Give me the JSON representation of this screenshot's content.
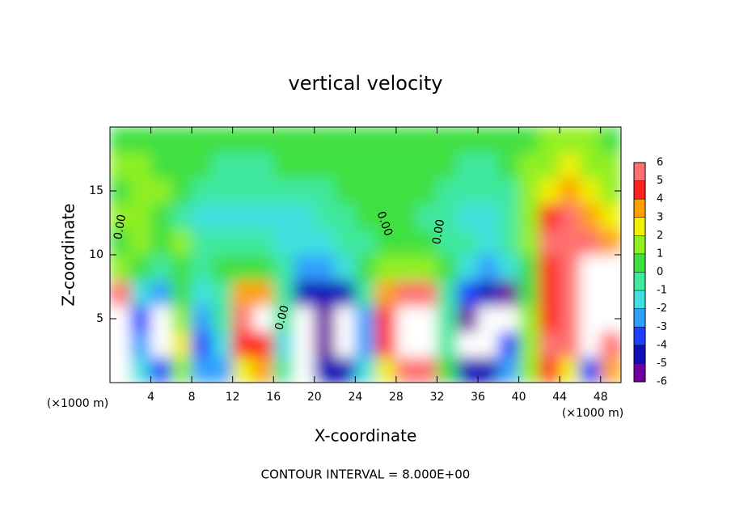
{
  "chart_data": {
    "type": "contour",
    "title": "vertical velocity",
    "x_label": "X-coordinate",
    "y_label": "Z-coordinate",
    "x_unit_left": "(×1000 m)",
    "x_unit_right": "(×1000 m)",
    "footer": "CONTOUR INTERVAL = 8.000E+00",
    "contour_labels": [
      "0.00",
      "0.00",
      "0.00",
      "0.00"
    ],
    "x": [
      1,
      3,
      5,
      7,
      9,
      11,
      13,
      15,
      17,
      19,
      21,
      23,
      25,
      27,
      29,
      31,
      33,
      35,
      37,
      39,
      41,
      43,
      45,
      47,
      49
    ],
    "y": [
      1,
      3,
      5,
      7,
      9,
      11,
      13,
      15,
      17,
      19
    ],
    "z": [
      [
        8,
        -2,
        -4,
        1,
        -3,
        -3,
        2,
        3,
        -1,
        -7,
        -5,
        -5,
        -2,
        2,
        6,
        6,
        0,
        -5,
        -5,
        -3,
        1,
        4,
        2,
        -4,
        3
      ],
      [
        9,
        -3,
        -7,
        2,
        -4,
        -2,
        4,
        4,
        -2,
        -8,
        -6,
        -8,
        -3,
        4,
        9,
        9,
        -1,
        -7,
        -8,
        -4,
        1,
        5,
        5,
        -8,
        6
      ],
      [
        8,
        -4,
        -8,
        1,
        -3,
        -1,
        5,
        7,
        -1,
        -7,
        -6,
        -8,
        -3,
        4,
        9,
        9,
        -1,
        -6,
        -7,
        -8,
        1,
        4,
        6,
        7,
        8
      ],
      [
        5,
        -2,
        -3,
        0,
        -2,
        -1,
        3,
        3,
        -1,
        -5,
        -5,
        -5,
        -1,
        3,
        6,
        6,
        -1,
        -4,
        -5,
        -6,
        0,
        4,
        5,
        7,
        9
      ],
      [
        1,
        0,
        -1,
        0,
        -1,
        0,
        0,
        0,
        -1,
        -3,
        -3,
        -2,
        0,
        1,
        1,
        1,
        0,
        -2,
        -3,
        -2,
        0,
        4,
        6,
        9,
        7
      ],
      [
        0,
        1,
        0,
        1,
        -1,
        -1,
        -1,
        -1,
        -2,
        -2,
        -2,
        -1,
        -1,
        0,
        0,
        0,
        -1,
        -1,
        -2,
        -1,
        1,
        5,
        6,
        5,
        3
      ],
      [
        1,
        1,
        0,
        -1,
        -2,
        -2,
        -2,
        -2,
        -2,
        -2,
        -1,
        -1,
        0,
        0,
        0,
        -1,
        -1,
        -2,
        -2,
        -1,
        1,
        4,
        5,
        3,
        2
      ],
      [
        0,
        1,
        1,
        0,
        -1,
        -1,
        -1,
        -1,
        -1,
        -1,
        -1,
        0,
        0,
        0,
        0,
        0,
        -1,
        -1,
        -1,
        -1,
        1,
        2,
        3,
        2,
        1
      ],
      [
        1,
        1,
        0,
        0,
        0,
        -1,
        -1,
        -1,
        0,
        0,
        0,
        0,
        0,
        0,
        0,
        0,
        0,
        -1,
        -1,
        0,
        1,
        1,
        2,
        1,
        1
      ],
      [
        0,
        0,
        0,
        0,
        0,
        0,
        0,
        0,
        0,
        0,
        0,
        0,
        0,
        0,
        0,
        0,
        0,
        0,
        0,
        0,
        0,
        1,
        1,
        1,
        0
      ]
    ],
    "xlim": [
      0,
      50
    ],
    "ylim": [
      0,
      20
    ],
    "xticks": [
      4,
      8,
      12,
      16,
      20,
      24,
      28,
      32,
      36,
      40,
      44,
      48
    ],
    "yticks": [
      5,
      10,
      15
    ],
    "colorbar_lim": [
      -6,
      6
    ],
    "colorbar_ticks": [
      6,
      5,
      4,
      3,
      2,
      1,
      0,
      -1,
      -2,
      -3,
      -4,
      -5,
      -6
    ],
    "colors": [
      "#7000a0",
      "#1010b8",
      "#2040ff",
      "#30a0ff",
      "#40e0e0",
      "#40e8a0",
      "#40e040",
      "#90f020",
      "#f0f000",
      "#ffa000",
      "#ff2020",
      "#ff7070"
    ],
    "out_of_range_color": "#ffffff"
  }
}
